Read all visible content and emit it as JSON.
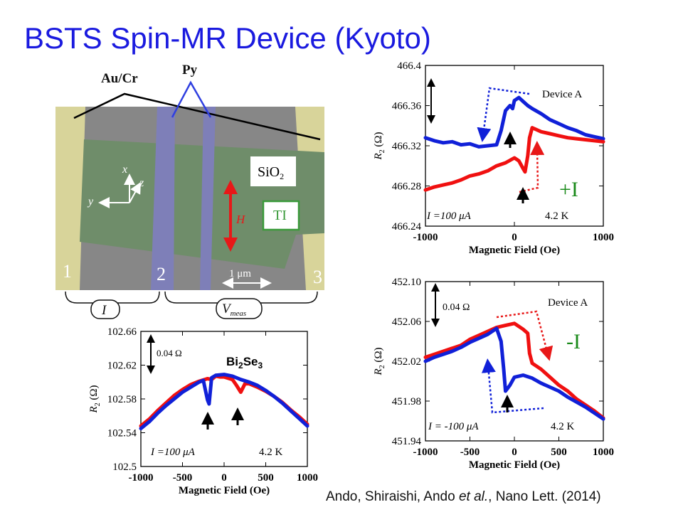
{
  "slide": {
    "title": "BSTS Spin-MR Device (Kyoto)",
    "citation_pre": "Ando, Shiraishi, Ando ",
    "citation_em": "et al.",
    "citation_post": ", Nano Lett. (2014)"
  },
  "device_image": {
    "labels": {
      "au_cr": "Au/Cr",
      "py": "Py",
      "sio2": "SiO",
      "sio2_sub": "2",
      "ti": "TI",
      "field": "H",
      "scale": "1 μm",
      "terminal_1": "1",
      "terminal_2": "2",
      "terminal_3": "3",
      "current": "I",
      "voltage": "V",
      "voltage_sub": "meas",
      "axis_x": "x",
      "axis_y": "y",
      "axis_z": "z"
    },
    "colors": {
      "contact_au": "#d8d49a",
      "ti_channel": "#6f8d6a",
      "py_electrode": "#7e7fb8",
      "substrate": "#8a8a8a"
    }
  },
  "chart_data": [
    {
      "id": "plus_I",
      "type": "line",
      "xlabel": "Magnetic Field (Oe)",
      "ylabel": "R",
      "ylabel_sub": "2",
      "ylabel_unit": " (Ω)",
      "xlim": [
        -1000,
        1000
      ],
      "ylim": [
        466.24,
        466.4
      ],
      "xticks": [
        -1000,
        0,
        1000
      ],
      "xtick_labels": [
        "-1000",
        "0",
        "1000"
      ],
      "yticks": [
        466.24,
        466.28,
        466.32,
        466.36,
        466.4
      ],
      "ytick_labels": [
        "466.24",
        "466.28",
        "466.32",
        "466.36",
        "466.4"
      ],
      "annotations": {
        "device": "Device A",
        "current": "I =100 μA",
        "temperature": "4.2 K",
        "sign_label": "+I"
      },
      "sign_color": "#1a8a1a",
      "series": [
        {
          "color": "#1020d8",
          "x": [
            -1000,
            -900,
            -800,
            -700,
            -600,
            -500,
            -400,
            -300,
            -200,
            -150,
            -100,
            -50,
            -20,
            0,
            50,
            100,
            150,
            200,
            300,
            400,
            500,
            600,
            700,
            800,
            900,
            1000
          ],
          "y": [
            466.328,
            466.325,
            466.323,
            466.324,
            466.321,
            466.322,
            466.319,
            466.32,
            466.321,
            466.335,
            466.355,
            466.36,
            466.357,
            466.365,
            466.368,
            466.364,
            466.36,
            466.357,
            466.352,
            466.346,
            466.342,
            466.338,
            466.335,
            466.331,
            466.329,
            466.327
          ]
        },
        {
          "color": "#f01010",
          "x": [
            -1000,
            -900,
            -800,
            -700,
            -600,
            -500,
            -400,
            -300,
            -200,
            -100,
            0,
            50,
            100,
            120,
            150,
            170,
            200,
            300,
            400,
            500,
            600,
            700,
            800,
            900,
            1000
          ],
          "y": [
            466.276,
            466.279,
            466.281,
            466.283,
            466.286,
            466.29,
            466.292,
            466.295,
            466.3,
            466.303,
            466.308,
            466.305,
            466.297,
            466.294,
            466.31,
            466.328,
            466.338,
            466.334,
            466.332,
            466.33,
            466.328,
            466.327,
            466.326,
            466.325,
            466.324
          ]
        }
      ]
    },
    {
      "id": "minus_I",
      "type": "line",
      "xlabel": "Magnetic Field (Oe)",
      "ylabel": "R",
      "ylabel_sub": "2",
      "ylabel_unit": " (Ω)",
      "xlim": [
        -1000,
        1000
      ],
      "ylim": [
        451.94,
        452.1
      ],
      "xticks": [
        -1000,
        -500,
        0,
        500,
        1000
      ],
      "xtick_labels": [
        "-1000",
        "-500",
        "0",
        "500",
        "1000"
      ],
      "yticks": [
        451.94,
        451.98,
        452.02,
        452.06,
        452.1
      ],
      "ytick_labels": [
        "451.94",
        "451.98",
        "452.02",
        "452.06",
        "452.10"
      ],
      "annotations": {
        "device": "Device A",
        "current": "I = -100 μA",
        "temperature": "4.2 K",
        "scale_bar": "0.04 Ω",
        "sign_label": "-I"
      },
      "sign_color": "#1a8a1a",
      "series": [
        {
          "color": "#f01010",
          "x": [
            -1000,
            -900,
            -800,
            -700,
            -600,
            -500,
            -400,
            -300,
            -200,
            -100,
            0,
            100,
            150,
            170,
            200,
            300,
            400,
            500,
            600,
            700,
            800,
            900,
            1000
          ],
          "y": [
            452.024,
            452.027,
            452.03,
            452.033,
            452.036,
            452.042,
            452.046,
            452.05,
            452.054,
            452.056,
            452.058,
            452.052,
            452.048,
            452.028,
            452.018,
            452.012,
            452.004,
            451.996,
            451.99,
            451.982,
            451.976,
            451.97,
            451.963
          ]
        },
        {
          "color": "#1020d8",
          "x": [
            -1000,
            -900,
            -800,
            -700,
            -600,
            -500,
            -400,
            -300,
            -200,
            -150,
            -120,
            -100,
            -50,
            0,
            100,
            200,
            300,
            400,
            500,
            600,
            700,
            800,
            900,
            1000
          ],
          "y": [
            452.02,
            452.024,
            452.027,
            452.03,
            452.034,
            452.039,
            452.043,
            452.047,
            452.053,
            452.04,
            452.012,
            451.99,
            451.996,
            452.004,
            452.006,
            452.003,
            451.998,
            451.994,
            451.99,
            451.984,
            451.979,
            451.974,
            451.968,
            451.962
          ]
        }
      ]
    },
    {
      "id": "bi2se3",
      "type": "line",
      "xlabel": "Magnetic Field (Oe)",
      "ylabel": "R",
      "ylabel_sub": "2",
      "ylabel_unit": " (Ω)",
      "xlim": [
        -1000,
        1000
      ],
      "ylim": [
        102.5,
        102.66
      ],
      "xticks": [
        -1000,
        -500,
        0,
        500,
        1000
      ],
      "xtick_labels": [
        "-1000",
        "-500",
        "0",
        "500",
        "1000"
      ],
      "yticks": [
        102.5,
        102.54,
        102.58,
        102.62,
        102.66
      ],
      "ytick_labels": [
        "102.5",
        "102.54",
        "102.58",
        "102.62",
        "102.66"
      ],
      "annotations": {
        "current": "I =100 μA",
        "temperature": "4.2 K",
        "scale_bar": "0.04 Ω",
        "material_base": "Bi",
        "material_sub1": "2",
        "material_mid": "Se",
        "material_sub2": "3"
      },
      "series": [
        {
          "color": "#f01010",
          "x": [
            -1000,
            -900,
            -800,
            -700,
            -600,
            -500,
            -400,
            -300,
            -200,
            -150,
            -100,
            -50,
            0,
            100,
            150,
            200,
            250,
            300,
            400,
            500,
            600,
            700,
            800,
            900,
            1000
          ],
          "y": [
            102.548,
            102.556,
            102.566,
            102.575,
            102.584,
            102.591,
            102.597,
            102.601,
            102.604,
            102.603,
            102.607,
            102.606,
            102.606,
            102.603,
            102.596,
            102.588,
            102.598,
            102.598,
            102.594,
            102.589,
            102.583,
            102.576,
            102.567,
            102.559,
            102.55
          ]
        },
        {
          "color": "#1020d8",
          "x": [
            -1000,
            -900,
            -800,
            -700,
            -600,
            -500,
            -400,
            -300,
            -250,
            -200,
            -180,
            -150,
            -100,
            0,
            100,
            200,
            300,
            400,
            500,
            600,
            700,
            800,
            900,
            1000
          ],
          "y": [
            102.545,
            102.553,
            102.563,
            102.572,
            102.58,
            102.588,
            102.594,
            102.6,
            102.602,
            102.579,
            102.574,
            102.605,
            102.608,
            102.609,
            102.607,
            102.603,
            102.6,
            102.596,
            102.59,
            102.583,
            102.575,
            102.566,
            102.557,
            102.548
          ]
        }
      ]
    }
  ]
}
